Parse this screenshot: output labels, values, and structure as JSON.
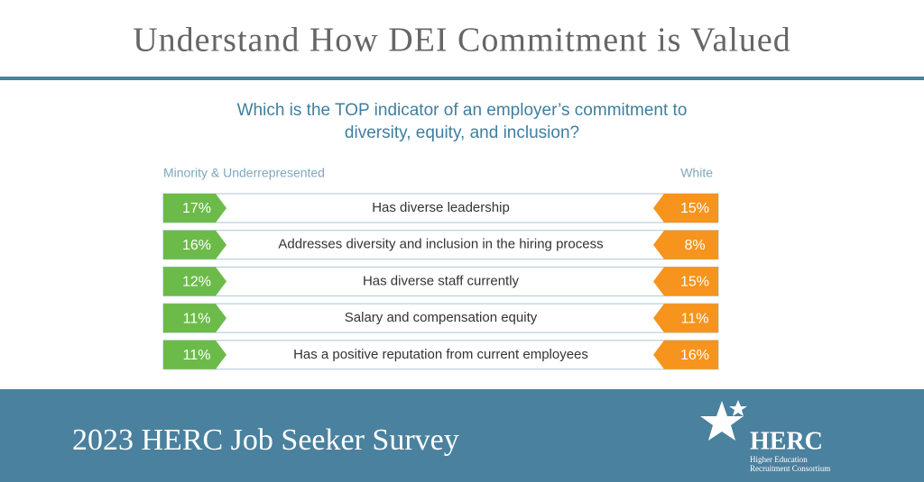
{
  "header": {
    "title": "Understand How DEI Commitment is Valued"
  },
  "question": {
    "line1": "Which is the TOP indicator of an employer’s commitment to",
    "line2": "diversity, equity, and inclusion?"
  },
  "columns": {
    "left": "Minority & Underrepresented",
    "right": "White"
  },
  "rows": [
    {
      "label": "Has diverse leadership",
      "left": "17%",
      "right": "15%"
    },
    {
      "label": "Addresses diversity and inclusion in the hiring process",
      "left": "16%",
      "right": "8%"
    },
    {
      "label": "Has diverse staff currently",
      "left": "12%",
      "right": "15%"
    },
    {
      "label": "Salary and compensation equity",
      "left": "11%",
      "right": "11%"
    },
    {
      "label": "Has a positive reputation from current employees",
      "left": "11%",
      "right": "16%"
    }
  ],
  "footer": {
    "title": "2023 HERC Job Seeker Survey",
    "logo": "HERC",
    "logo_line1": "Higher Education",
    "logo_line2": "Recruitment Consortium"
  }
}
